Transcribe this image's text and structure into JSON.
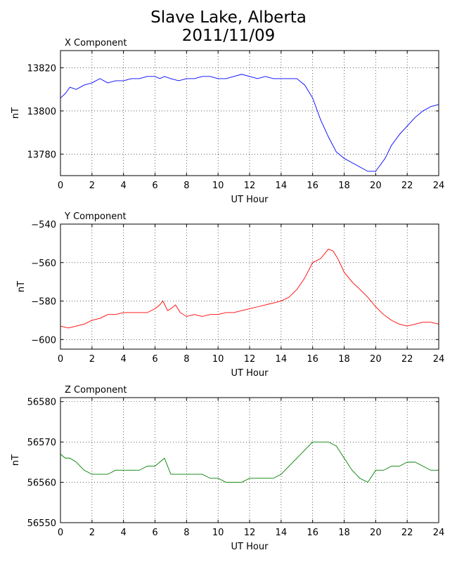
{
  "title_line1": "Slave Lake, Alberta",
  "title_line2": "2011/11/09",
  "chart_data": [
    {
      "type": "line",
      "panel_title": "X Component",
      "xlabel": "UT Hour",
      "ylabel": "nT",
      "xlim": [
        0,
        24
      ],
      "ylim": [
        13770,
        13828
      ],
      "xticks": [
        0,
        2,
        4,
        6,
        8,
        10,
        12,
        14,
        16,
        18,
        20,
        22,
        24
      ],
      "yticks": [
        13780,
        13800,
        13820
      ],
      "grid": true,
      "color": "#0000ff",
      "x": [
        0,
        0.3,
        0.6,
        1.0,
        1.5,
        2.0,
        2.5,
        3.0,
        3.5,
        4.0,
        4.5,
        5.0,
        5.5,
        6.0,
        6.3,
        6.6,
        7.0,
        7.5,
        8.0,
        8.5,
        9.0,
        9.5,
        10.0,
        10.5,
        11.0,
        11.5,
        12.0,
        12.5,
        13.0,
        13.5,
        14.0,
        14.5,
        15.0,
        15.5,
        16.0,
        16.5,
        17.0,
        17.5,
        18.0,
        18.5,
        19.0,
        19.5,
        20.0,
        20.3,
        20.6,
        21.0,
        21.5,
        22.0,
        22.5,
        23.0,
        23.5,
        24.0
      ],
      "values": [
        13806,
        13808,
        13811,
        13810,
        13812,
        13813,
        13815,
        13813,
        13814,
        13814,
        13815,
        13815,
        13816,
        13816,
        13815,
        13816,
        13815,
        13814,
        13815,
        13815,
        13816,
        13816,
        13815,
        13815,
        13816,
        13817,
        13816,
        13815,
        13816,
        13815,
        13815,
        13815,
        13815,
        13812,
        13806,
        13796,
        13788,
        13781,
        13778,
        13776,
        13774,
        13772,
        13772,
        13775,
        13778,
        13784,
        13789,
        13793,
        13797,
        13800,
        13802,
        13803
      ]
    },
    {
      "type": "line",
      "panel_title": "Y Component",
      "xlabel": "UT Hour",
      "ylabel": "nT",
      "xlim": [
        0,
        24
      ],
      "ylim": [
        -605,
        -540
      ],
      "xticks": [
        0,
        2,
        4,
        6,
        8,
        10,
        12,
        14,
        16,
        18,
        20,
        22,
        24
      ],
      "yticks": [
        -540,
        -560,
        -580,
        -600
      ],
      "grid": true,
      "color": "#ff0000",
      "x": [
        0,
        0.5,
        1.0,
        1.5,
        2.0,
        2.5,
        3.0,
        3.5,
        4.0,
        4.5,
        5.0,
        5.5,
        6.0,
        6.3,
        6.5,
        6.8,
        7.0,
        7.3,
        7.6,
        8.0,
        8.5,
        9.0,
        9.5,
        10.0,
        10.5,
        11.0,
        11.5,
        12.0,
        12.5,
        13.0,
        13.5,
        14.0,
        14.5,
        15.0,
        15.5,
        16.0,
        16.5,
        17.0,
        17.3,
        17.6,
        18.0,
        18.5,
        19.0,
        19.5,
        20.0,
        20.5,
        21.0,
        21.5,
        22.0,
        22.5,
        23.0,
        23.5,
        24.0
      ],
      "values": [
        -593,
        -594,
        -593,
        -592,
        -590,
        -589,
        -587,
        -587,
        -586,
        -586,
        -586,
        -586,
        -584,
        -582,
        -580,
        -585,
        -584,
        -582,
        -586,
        -588,
        -587,
        -588,
        -587,
        -587,
        -586,
        -586,
        -585,
        -584,
        -583,
        -582,
        -581,
        -580,
        -578,
        -574,
        -568,
        -560,
        -558,
        -553,
        -554,
        -558,
        -565,
        -570,
        -574,
        -578,
        -583,
        -587,
        -590,
        -592,
        -593,
        -592,
        -591,
        -591,
        -592
      ]
    },
    {
      "type": "line",
      "panel_title": "Z Component",
      "xlabel": "UT Hour",
      "ylabel": "nT",
      "xlim": [
        0,
        24
      ],
      "ylim": [
        56550,
        56581
      ],
      "xticks": [
        0,
        2,
        4,
        6,
        8,
        10,
        12,
        14,
        16,
        18,
        20,
        22,
        24
      ],
      "yticks": [
        56550,
        56560,
        56570,
        56580
      ],
      "grid": true,
      "color": "#008000",
      "x": [
        0,
        0.3,
        0.6,
        1.0,
        1.5,
        2.0,
        2.5,
        3.0,
        3.5,
        4.0,
        4.5,
        5.0,
        5.5,
        6.0,
        6.3,
        6.6,
        7.0,
        7.5,
        8.0,
        8.5,
        9.0,
        9.5,
        10.0,
        10.5,
        11.0,
        11.5,
        12.0,
        12.5,
        13.0,
        13.5,
        14.0,
        14.5,
        15.0,
        15.5,
        16.0,
        16.5,
        17.0,
        17.5,
        18.0,
        18.5,
        19.0,
        19.5,
        20.0,
        20.5,
        21.0,
        21.5,
        22.0,
        22.5,
        23.0,
        23.5,
        24.0
      ],
      "values": [
        56567,
        56566,
        56566,
        56565,
        56563,
        56562,
        56562,
        56562,
        56563,
        56563,
        56563,
        56563,
        56564,
        56564,
        56565,
        56566,
        56562,
        56562,
        56562,
        56562,
        56562,
        56561,
        56561,
        56560,
        56560,
        56560,
        56561,
        56561,
        56561,
        56561,
        56562,
        56564,
        56566,
        56568,
        56570,
        56570,
        56570,
        56569,
        56566,
        56563,
        56561,
        56560,
        56563,
        56563,
        56564,
        56564,
        56565,
        56565,
        56564,
        56563,
        56563
      ]
    }
  ]
}
